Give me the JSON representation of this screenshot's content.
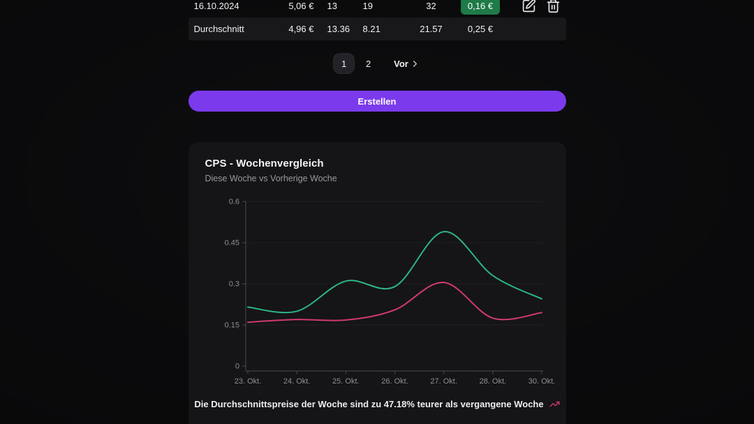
{
  "colors": {
    "accent": "#7c3aed",
    "badge_green": "#1e7a46",
    "line_green": "#2eb584",
    "line_pink": "#d23a6e"
  },
  "table": {
    "rows": [
      {
        "date": "16.10.2024",
        "price": "5,06 €",
        "metric1": "13",
        "metric2": "19",
        "metric3": "32",
        "cps": "0,16 €"
      }
    ],
    "summary": {
      "label": "Durchschnitt",
      "price": "4,96 €",
      "metric1": "13.36",
      "metric2": "8.21",
      "metric3": "21.57",
      "cps": "0,25 €"
    }
  },
  "pagination": {
    "pages": [
      "1",
      "2"
    ],
    "active_page": "1",
    "next_label": "Vor"
  },
  "create_button": {
    "label": "Erstellen"
  },
  "chart_card": {
    "title": "CPS - Wochenvergleich",
    "subtitle": "Diese Woche vs Vorherige Woche",
    "note": "Die Durchschnittspreise der Woche sind zu 47.18% teurer als vergangene Woche"
  },
  "chart_data": {
    "type": "line",
    "title": "CPS - Wochenvergleich",
    "x": [
      "23. Okt.",
      "24. Okt.",
      "25. Okt.",
      "26. Okt.",
      "27. Okt.",
      "28. Okt.",
      "30. Okt."
    ],
    "series": [
      {
        "name": "Diese Woche",
        "color": "#2eb584",
        "values": [
          0.215,
          0.2,
          0.31,
          0.29,
          0.49,
          0.33,
          0.245
        ]
      },
      {
        "name": "Vorherige Woche",
        "color": "#d23a6e",
        "values": [
          0.16,
          0.17,
          0.168,
          0.205,
          0.305,
          0.175,
          0.195
        ]
      }
    ],
    "ylim": [
      0,
      0.6
    ],
    "yticks": [
      0,
      0.15,
      0.3,
      0.45,
      0.6
    ],
    "grid": "faint horizontal",
    "legend": "none",
    "change_pct": "47.18%"
  }
}
